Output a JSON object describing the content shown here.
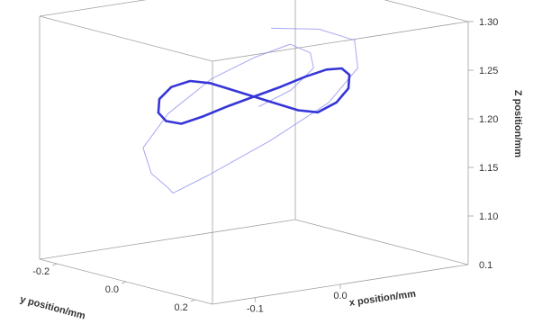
{
  "chart_data": {
    "type": "line",
    "projection": "3d",
    "title": "",
    "xlabel": "x position/mm",
    "ylabel": "y position/mm",
    "zlabel": "Z position/mm",
    "x_ticks": [
      "-0.1",
      "0.0"
    ],
    "y_ticks": [
      "0.2",
      "0.0",
      "-0.2"
    ],
    "z_ticks": [
      "1.10",
      "1.15",
      "1.20",
      "1.25",
      "1.30"
    ],
    "z_bottom_label": "0.1",
    "xlim": [
      -0.15,
      0.15
    ],
    "ylim": [
      -0.25,
      0.25
    ],
    "zlim": [
      1.05,
      1.3
    ],
    "grid": false,
    "colors": {
      "trajectory": "#2b2bd6",
      "transient": "#8a8af0",
      "box": "#a0a0a0"
    },
    "series": [
      {
        "role": "steady-state figure-eight trajectory",
        "points": [
          [
            0.0,
            0.0,
            1.22
          ],
          [
            0.025,
            0.015,
            1.228
          ],
          [
            0.05,
            0.025,
            1.236
          ],
          [
            0.075,
            0.025,
            1.24
          ],
          [
            0.095,
            0.02,
            1.238
          ],
          [
            0.11,
            0.005,
            1.228
          ],
          [
            0.115,
            -0.01,
            1.212
          ],
          [
            0.105,
            -0.02,
            1.198
          ],
          [
            0.085,
            -0.025,
            1.19
          ],
          [
            0.06,
            -0.02,
            1.196
          ],
          [
            0.03,
            -0.012,
            1.208
          ],
          [
            0.0,
            0.0,
            1.22
          ],
          [
            -0.03,
            0.012,
            1.232
          ],
          [
            -0.06,
            0.02,
            1.244
          ],
          [
            -0.085,
            0.025,
            1.25
          ],
          [
            -0.105,
            0.02,
            1.246
          ],
          [
            -0.115,
            0.01,
            1.234
          ],
          [
            -0.11,
            -0.005,
            1.218
          ],
          [
            -0.095,
            -0.02,
            1.206
          ],
          [
            -0.075,
            -0.025,
            1.2
          ],
          [
            -0.05,
            -0.025,
            1.204
          ],
          [
            -0.025,
            -0.015,
            1.212
          ],
          [
            0.0,
            0.0,
            1.22
          ]
        ]
      },
      {
        "role": "initial transient path",
        "points": [
          [
            0.0,
            0.05,
            1.295
          ],
          [
            0.06,
            0.04,
            1.285
          ],
          [
            0.11,
            0.02,
            1.265
          ],
          [
            0.13,
            -0.02,
            1.23
          ],
          [
            0.12,
            -0.08,
            1.19
          ],
          [
            0.08,
            -0.15,
            1.15
          ],
          [
            0.02,
            -0.18,
            1.12
          ],
          [
            -0.03,
            -0.16,
            1.11
          ],
          [
            -0.06,
            -0.1,
            1.125
          ],
          [
            -0.1,
            -0.05,
            1.15
          ],
          [
            -0.13,
            0.0,
            1.185
          ],
          [
            -0.125,
            0.06,
            1.225
          ],
          [
            -0.09,
            0.1,
            1.26
          ],
          [
            -0.04,
            0.1,
            1.275
          ],
          [
            0.01,
            0.08,
            1.28
          ],
          [
            0.05,
            0.04,
            1.262
          ],
          [
            0.07,
            0.0,
            1.24
          ],
          [
            0.06,
            -0.04,
            1.215
          ],
          [
            0.03,
            -0.06,
            1.2
          ]
        ]
      }
    ]
  }
}
